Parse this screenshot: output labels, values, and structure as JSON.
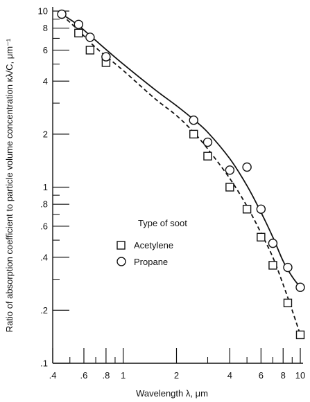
{
  "chart_data": {
    "type": "scatter",
    "xscale": "log",
    "yscale": "log",
    "xlim": [
      0.4,
      10
    ],
    "ylim": [
      0.1,
      10
    ],
    "xlabel": "Wavelength λ, μm",
    "ylabel": "Ratio of absorption coefficient to particle volume concentration  κλ/C, μm⁻¹",
    "x_ticks": [
      {
        "value": 0.4,
        "label": ".4"
      },
      {
        "value": 0.6,
        "label": ".6"
      },
      {
        "value": 0.8,
        "label": ".8"
      },
      {
        "value": 1,
        "label": "1"
      },
      {
        "value": 2,
        "label": "2"
      },
      {
        "value": 4,
        "label": "4"
      },
      {
        "value": 6,
        "label": "6"
      },
      {
        "value": 8,
        "label": "8"
      },
      {
        "value": 10,
        "label": "10"
      }
    ],
    "y_ticks": [
      {
        "value": 0.1,
        "label": ".1"
      },
      {
        "value": 0.2,
        "label": ".2"
      },
      {
        "value": 0.4,
        "label": ".4"
      },
      {
        "value": 0.6,
        "label": ".6"
      },
      {
        "value": 0.8,
        "label": ".8"
      },
      {
        "value": 1,
        "label": "1"
      },
      {
        "value": 2,
        "label": "2"
      },
      {
        "value": 4,
        "label": "4"
      },
      {
        "value": 6,
        "label": "6"
      },
      {
        "value": 8,
        "label": "8"
      },
      {
        "value": 10,
        "label": "10"
      }
    ],
    "x_minor_ticks": [
      0.5,
      0.7,
      0.9,
      3,
      5,
      7,
      9
    ],
    "y_minor_ticks": [
      0.3,
      0.5,
      0.7,
      0.9,
      3,
      5,
      7,
      9
    ],
    "legend": {
      "title": "Type of soot",
      "placement": "lower-left",
      "entries": [
        {
          "label": "Acetylene",
          "marker": "square",
          "line": "dashed"
        },
        {
          "label": "Propane",
          "marker": "circle",
          "line": "solid"
        }
      ]
    },
    "series": [
      {
        "name": "Acetylene",
        "marker": "square",
        "points": [
          {
            "x": 0.56,
            "y": 7.5
          },
          {
            "x": 0.65,
            "y": 6.0
          },
          {
            "x": 0.8,
            "y": 5.1
          },
          {
            "x": 2.5,
            "y": 2.0
          },
          {
            "x": 3.0,
            "y": 1.5
          },
          {
            "x": 4.0,
            "y": 1.0
          },
          {
            "x": 5.0,
            "y": 0.75
          },
          {
            "x": 6.0,
            "y": 0.52
          },
          {
            "x": 7.0,
            "y": 0.36
          },
          {
            "x": 8.5,
            "y": 0.22
          },
          {
            "x": 10.0,
            "y": 0.145
          }
        ],
        "curve": [
          {
            "x": 0.45,
            "y": 9.5
          },
          {
            "x": 0.55,
            "y": 7.9
          },
          {
            "x": 0.7,
            "y": 6.2
          },
          {
            "x": 1.0,
            "y": 4.6
          },
          {
            "x": 1.5,
            "y": 3.2
          },
          {
            "x": 2.0,
            "y": 2.55
          },
          {
            "x": 2.5,
            "y": 2.05
          },
          {
            "x": 3.0,
            "y": 1.65
          },
          {
            "x": 4.0,
            "y": 1.12
          },
          {
            "x": 5.0,
            "y": 0.78
          },
          {
            "x": 6.0,
            "y": 0.55
          },
          {
            "x": 7.0,
            "y": 0.4
          },
          {
            "x": 8.0,
            "y": 0.28
          },
          {
            "x": 9.0,
            "y": 0.2
          },
          {
            "x": 10.0,
            "y": 0.145
          }
        ]
      },
      {
        "name": "Propane",
        "marker": "circle",
        "points": [
          {
            "x": 0.45,
            "y": 9.6
          },
          {
            "x": 0.56,
            "y": 8.4
          },
          {
            "x": 0.65,
            "y": 7.1
          },
          {
            "x": 0.8,
            "y": 5.5
          },
          {
            "x": 2.5,
            "y": 2.4
          },
          {
            "x": 3.0,
            "y": 1.8
          },
          {
            "x": 4.0,
            "y": 1.25
          },
          {
            "x": 5.0,
            "y": 1.3
          },
          {
            "x": 6.0,
            "y": 0.75
          },
          {
            "x": 7.0,
            "y": 0.48
          },
          {
            "x": 8.5,
            "y": 0.35
          },
          {
            "x": 10.0,
            "y": 0.27
          }
        ],
        "curve": [
          {
            "x": 0.45,
            "y": 9.6
          },
          {
            "x": 0.55,
            "y": 8.4
          },
          {
            "x": 0.7,
            "y": 6.8
          },
          {
            "x": 1.0,
            "y": 5.0
          },
          {
            "x": 1.5,
            "y": 3.6
          },
          {
            "x": 2.0,
            "y": 2.9
          },
          {
            "x": 2.5,
            "y": 2.42
          },
          {
            "x": 3.0,
            "y": 2.05
          },
          {
            "x": 4.0,
            "y": 1.45
          },
          {
            "x": 5.0,
            "y": 1.02
          },
          {
            "x": 6.0,
            "y": 0.72
          },
          {
            "x": 7.0,
            "y": 0.52
          },
          {
            "x": 8.0,
            "y": 0.38
          },
          {
            "x": 9.0,
            "y": 0.31
          },
          {
            "x": 10.0,
            "y": 0.27
          }
        ]
      }
    ]
  }
}
